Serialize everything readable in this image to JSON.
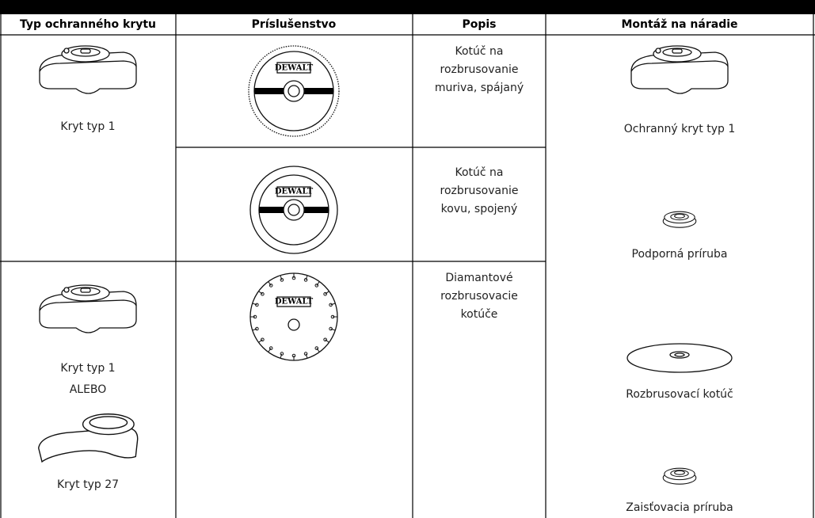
{
  "table": {
    "headers": [
      "Typ ochranného krytu",
      "Príslušenstvo",
      "Popis",
      "Montáž na náradie"
    ],
    "guards": [
      [
        "Kryt typ 1"
      ],
      [
        "Kryt typ 1",
        "ALEBO",
        "Kryt typ 27"
      ]
    ],
    "accessories": [
      {
        "brand": "DEWALT",
        "description": [
          "Kotúč na",
          "rozbrusovanie",
          "muriva, spájaný"
        ]
      },
      {
        "brand": "DEWALT",
        "description": [
          "Kotúč na",
          "rozbrusovanie",
          "kovu, spojený"
        ]
      },
      {
        "brand": "DEWALT",
        "description": [
          "Diamantové",
          "rozbrusovacie",
          "kotúče"
        ]
      }
    ],
    "mounting": [
      "Ochranný kryt typ 1",
      "Podporná príruba",
      "Rozbrusovací kotúč",
      "Zaisťovacia príruba"
    ]
  }
}
